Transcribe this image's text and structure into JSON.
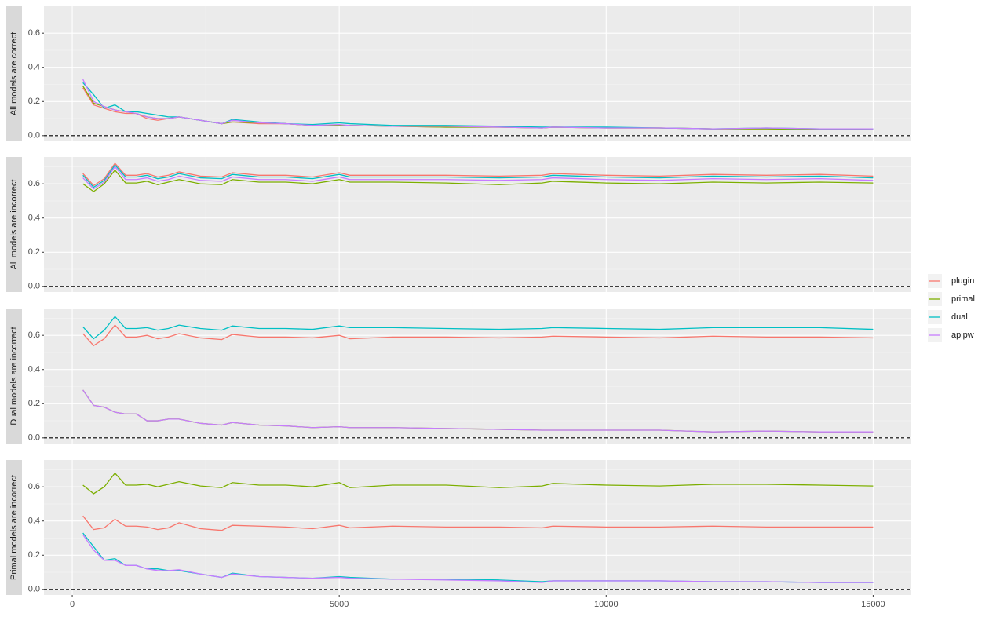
{
  "chart_data": [
    {
      "type": "line",
      "facet_label": "All models are correct",
      "x": [
        200,
        400,
        600,
        800,
        1000,
        1200,
        1400,
        1600,
        1800,
        2000,
        2400,
        2800,
        3000,
        3500,
        4000,
        4500,
        5000,
        5200,
        6000,
        7000,
        8000,
        8800,
        9000,
        10000,
        11000,
        12000,
        13000,
        14000,
        15000
      ],
      "xlim": [
        -530,
        15700
      ],
      "xticks": [
        0,
        5000,
        10000,
        15000
      ],
      "ylim": [
        -0.033,
        0.757
      ],
      "yticks": [
        {
          "value": 0,
          "label": "0.0"
        },
        0.2,
        0.4,
        0.6
      ],
      "hline": 0,
      "grid": true,
      "series": [
        {
          "name": "plugin",
          "color": "#F8766D",
          "values": [
            0.28,
            0.18,
            0.16,
            0.14,
            0.13,
            0.13,
            0.1,
            0.09,
            0.1,
            0.11,
            0.09,
            0.07,
            0.08,
            0.07,
            0.07,
            0.06,
            0.06,
            0.06,
            0.055,
            0.05,
            0.05,
            0.045,
            0.05,
            0.045,
            0.045,
            0.04,
            0.04,
            0.035,
            0.04
          ]
        },
        {
          "name": "primal",
          "color": "#7CAE00",
          "values": [
            0.29,
            0.19,
            0.17,
            0.15,
            0.14,
            0.13,
            0.11,
            0.1,
            0.1,
            0.11,
            0.09,
            0.07,
            0.08,
            0.075,
            0.07,
            0.06,
            0.06,
            0.06,
            0.055,
            0.05,
            0.05,
            0.045,
            0.05,
            0.045,
            0.045,
            0.04,
            0.04,
            0.035,
            0.04
          ]
        },
        {
          "name": "dual",
          "color": "#00BFC4",
          "values": [
            0.31,
            0.24,
            0.16,
            0.18,
            0.14,
            0.14,
            0.13,
            0.12,
            0.11,
            0.11,
            0.09,
            0.07,
            0.095,
            0.08,
            0.07,
            0.065,
            0.075,
            0.07,
            0.06,
            0.06,
            0.055,
            0.05,
            0.05,
            0.05,
            0.045,
            0.04,
            0.045,
            0.04,
            0.04
          ]
        },
        {
          "name": "apipw",
          "color": "#C77CFF",
          "values": [
            0.33,
            0.2,
            0.17,
            0.15,
            0.14,
            0.13,
            0.11,
            0.1,
            0.1,
            0.11,
            0.09,
            0.07,
            0.09,
            0.075,
            0.07,
            0.06,
            0.065,
            0.06,
            0.055,
            0.055,
            0.05,
            0.045,
            0.05,
            0.045,
            0.045,
            0.04,
            0.045,
            0.04,
            0.04
          ]
        }
      ]
    },
    {
      "type": "line",
      "facet_label": "All models are incorrect",
      "x": [
        200,
        400,
        600,
        800,
        1000,
        1200,
        1400,
        1600,
        1800,
        2000,
        2400,
        2800,
        3000,
        3500,
        4000,
        4500,
        5000,
        5200,
        6000,
        7000,
        8000,
        8800,
        9000,
        10000,
        11000,
        12000,
        13000,
        14000,
        15000
      ],
      "xlim": [
        -530,
        15700
      ],
      "xticks": [
        0,
        5000,
        10000,
        15000
      ],
      "ylim": [
        -0.033,
        0.757
      ],
      "yticks": [
        {
          "value": 0,
          "label": "0.0"
        },
        0.2,
        0.4,
        0.6
      ],
      "hline": 0,
      "grid": true,
      "series": [
        {
          "name": "plugin",
          "color": "#F8766D",
          "values": [
            0.66,
            0.59,
            0.63,
            0.72,
            0.65,
            0.65,
            0.66,
            0.64,
            0.65,
            0.67,
            0.645,
            0.64,
            0.665,
            0.65,
            0.65,
            0.64,
            0.665,
            0.65,
            0.65,
            0.65,
            0.645,
            0.65,
            0.66,
            0.65,
            0.645,
            0.655,
            0.65,
            0.655,
            0.645
          ]
        },
        {
          "name": "primal",
          "color": "#7CAE00",
          "values": [
            0.6,
            0.555,
            0.6,
            0.68,
            0.605,
            0.605,
            0.615,
            0.595,
            0.61,
            0.625,
            0.6,
            0.595,
            0.625,
            0.61,
            0.61,
            0.6,
            0.625,
            0.61,
            0.61,
            0.605,
            0.595,
            0.605,
            0.615,
            0.605,
            0.6,
            0.61,
            0.605,
            0.61,
            0.605
          ]
        },
        {
          "name": "dual",
          "color": "#00BFC4",
          "values": [
            0.65,
            0.58,
            0.62,
            0.71,
            0.64,
            0.64,
            0.65,
            0.63,
            0.64,
            0.66,
            0.635,
            0.63,
            0.655,
            0.64,
            0.64,
            0.63,
            0.655,
            0.64,
            0.64,
            0.64,
            0.635,
            0.64,
            0.65,
            0.64,
            0.635,
            0.645,
            0.64,
            0.645,
            0.635
          ]
        },
        {
          "name": "apipw",
          "color": "#C77CFF",
          "values": [
            0.635,
            0.57,
            0.61,
            0.7,
            0.625,
            0.625,
            0.635,
            0.615,
            0.625,
            0.645,
            0.62,
            0.615,
            0.64,
            0.625,
            0.625,
            0.615,
            0.64,
            0.625,
            0.625,
            0.625,
            0.62,
            0.625,
            0.635,
            0.625,
            0.62,
            0.63,
            0.625,
            0.63,
            0.62
          ]
        }
      ]
    },
    {
      "type": "line",
      "facet_label": "Dual models are incorrect",
      "x": [
        200,
        400,
        600,
        800,
        1000,
        1200,
        1400,
        1600,
        1800,
        2000,
        2400,
        2800,
        3000,
        3500,
        4000,
        4500,
        5000,
        5200,
        6000,
        7000,
        8000,
        8800,
        9000,
        10000,
        11000,
        12000,
        13000,
        14000,
        15000
      ],
      "xlim": [
        -530,
        15700
      ],
      "xticks": [
        0,
        5000,
        10000,
        15000
      ],
      "ylim": [
        -0.033,
        0.757
      ],
      "yticks": [
        {
          "value": 0,
          "label": "0.0"
        },
        0.2,
        0.4,
        0.6
      ],
      "hline": 0,
      "grid": true,
      "series": [
        {
          "name": "plugin",
          "color": "#F8766D",
          "values": [
            0.61,
            0.54,
            0.58,
            0.66,
            0.59,
            0.59,
            0.6,
            0.58,
            0.59,
            0.61,
            0.585,
            0.575,
            0.605,
            0.59,
            0.59,
            0.585,
            0.6,
            0.58,
            0.59,
            0.59,
            0.585,
            0.59,
            0.595,
            0.59,
            0.585,
            0.595,
            0.59,
            0.59,
            0.585
          ]
        },
        {
          "name": "primal",
          "color": "#7CAE00",
          "values": [
            0.28,
            0.19,
            0.18,
            0.15,
            0.14,
            0.14,
            0.1,
            0.1,
            0.11,
            0.11,
            0.085,
            0.075,
            0.09,
            0.075,
            0.07,
            0.06,
            0.065,
            0.06,
            0.06,
            0.055,
            0.05,
            0.045,
            0.045,
            0.045,
            0.045,
            0.035,
            0.04,
            0.035,
            0.035
          ]
        },
        {
          "name": "dual",
          "color": "#00BFC4",
          "values": [
            0.65,
            0.58,
            0.63,
            0.71,
            0.64,
            0.64,
            0.645,
            0.63,
            0.64,
            0.66,
            0.64,
            0.63,
            0.655,
            0.64,
            0.64,
            0.635,
            0.655,
            0.645,
            0.645,
            0.64,
            0.635,
            0.64,
            0.645,
            0.64,
            0.635,
            0.645,
            0.645,
            0.645,
            0.635
          ]
        },
        {
          "name": "apipw",
          "color": "#C77CFF",
          "values": [
            0.28,
            0.19,
            0.18,
            0.15,
            0.14,
            0.14,
            0.1,
            0.1,
            0.11,
            0.11,
            0.085,
            0.075,
            0.09,
            0.075,
            0.07,
            0.06,
            0.065,
            0.06,
            0.06,
            0.055,
            0.05,
            0.045,
            0.045,
            0.045,
            0.045,
            0.035,
            0.04,
            0.035,
            0.035
          ]
        }
      ]
    },
    {
      "type": "line",
      "facet_label": "Primal models are incorrect",
      "x": [
        200,
        400,
        600,
        800,
        1000,
        1200,
        1400,
        1600,
        1800,
        2000,
        2400,
        2800,
        3000,
        3500,
        4000,
        4500,
        5000,
        5200,
        6000,
        7000,
        8000,
        8800,
        9000,
        10000,
        11000,
        12000,
        13000,
        14000,
        15000
      ],
      "xlim": [
        -530,
        15700
      ],
      "xticks": [
        0,
        5000,
        10000,
        15000
      ],
      "ylim": [
        -0.033,
        0.757
      ],
      "yticks": [
        {
          "value": 0,
          "label": "0.0"
        },
        0.2,
        0.4,
        0.6
      ],
      "hline": 0,
      "grid": true,
      "series": [
        {
          "name": "plugin",
          "color": "#F8766D",
          "values": [
            0.43,
            0.35,
            0.36,
            0.41,
            0.37,
            0.37,
            0.365,
            0.35,
            0.36,
            0.39,
            0.355,
            0.345,
            0.375,
            0.37,
            0.365,
            0.355,
            0.375,
            0.36,
            0.37,
            0.365,
            0.365,
            0.36,
            0.37,
            0.365,
            0.365,
            0.37,
            0.365,
            0.365,
            0.365
          ]
        },
        {
          "name": "primal",
          "color": "#7CAE00",
          "values": [
            0.61,
            0.56,
            0.6,
            0.68,
            0.61,
            0.61,
            0.615,
            0.6,
            0.615,
            0.63,
            0.605,
            0.595,
            0.625,
            0.61,
            0.61,
            0.6,
            0.625,
            0.595,
            0.61,
            0.61,
            0.595,
            0.605,
            0.62,
            0.61,
            0.605,
            0.615,
            0.615,
            0.61,
            0.605
          ]
        },
        {
          "name": "dual",
          "color": "#00BFC4",
          "values": [
            0.33,
            0.25,
            0.17,
            0.18,
            0.14,
            0.14,
            0.12,
            0.12,
            0.11,
            0.11,
            0.09,
            0.07,
            0.095,
            0.075,
            0.07,
            0.065,
            0.075,
            0.07,
            0.06,
            0.06,
            0.055,
            0.045,
            0.05,
            0.05,
            0.05,
            0.045,
            0.045,
            0.04,
            0.04
          ]
        },
        {
          "name": "apipw",
          "color": "#C77CFF",
          "values": [
            0.32,
            0.23,
            0.17,
            0.17,
            0.14,
            0.14,
            0.12,
            0.11,
            0.11,
            0.115,
            0.09,
            0.07,
            0.09,
            0.075,
            0.07,
            0.065,
            0.07,
            0.065,
            0.06,
            0.055,
            0.05,
            0.04,
            0.05,
            0.05,
            0.05,
            0.045,
            0.045,
            0.04,
            0.04
          ]
        }
      ]
    }
  ]
}
